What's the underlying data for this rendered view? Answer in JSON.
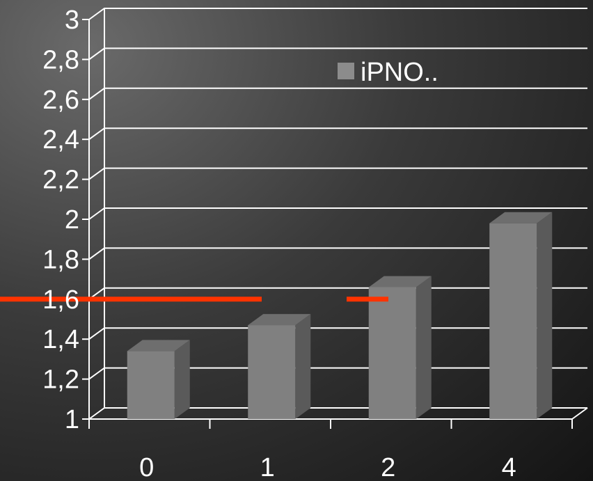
{
  "chart_data": {
    "type": "bar",
    "categories": [
      "0",
      "1",
      "2",
      "4"
    ],
    "series": [
      {
        "name": "iPNO..",
        "values": [
          1.34,
          1.47,
          1.66,
          1.98
        ]
      }
    ],
    "ylim": [
      1,
      3
    ],
    "yticks": [
      "1",
      "1,2",
      "1,4",
      "1,6",
      "1,8",
      "2",
      "2,2",
      "2,4",
      "2,6",
      "2,8",
      "3"
    ],
    "grid": true,
    "legend_position": "top-right",
    "reference_line": {
      "value": 1.6,
      "color": "#ff3300"
    },
    "colors": {
      "bar_front": "#808080",
      "bar_side": "#5a5a5a",
      "bar_top": "#6e6e6e",
      "grid": "#ffffff",
      "legend_swatch": "#8c8c8c"
    }
  }
}
